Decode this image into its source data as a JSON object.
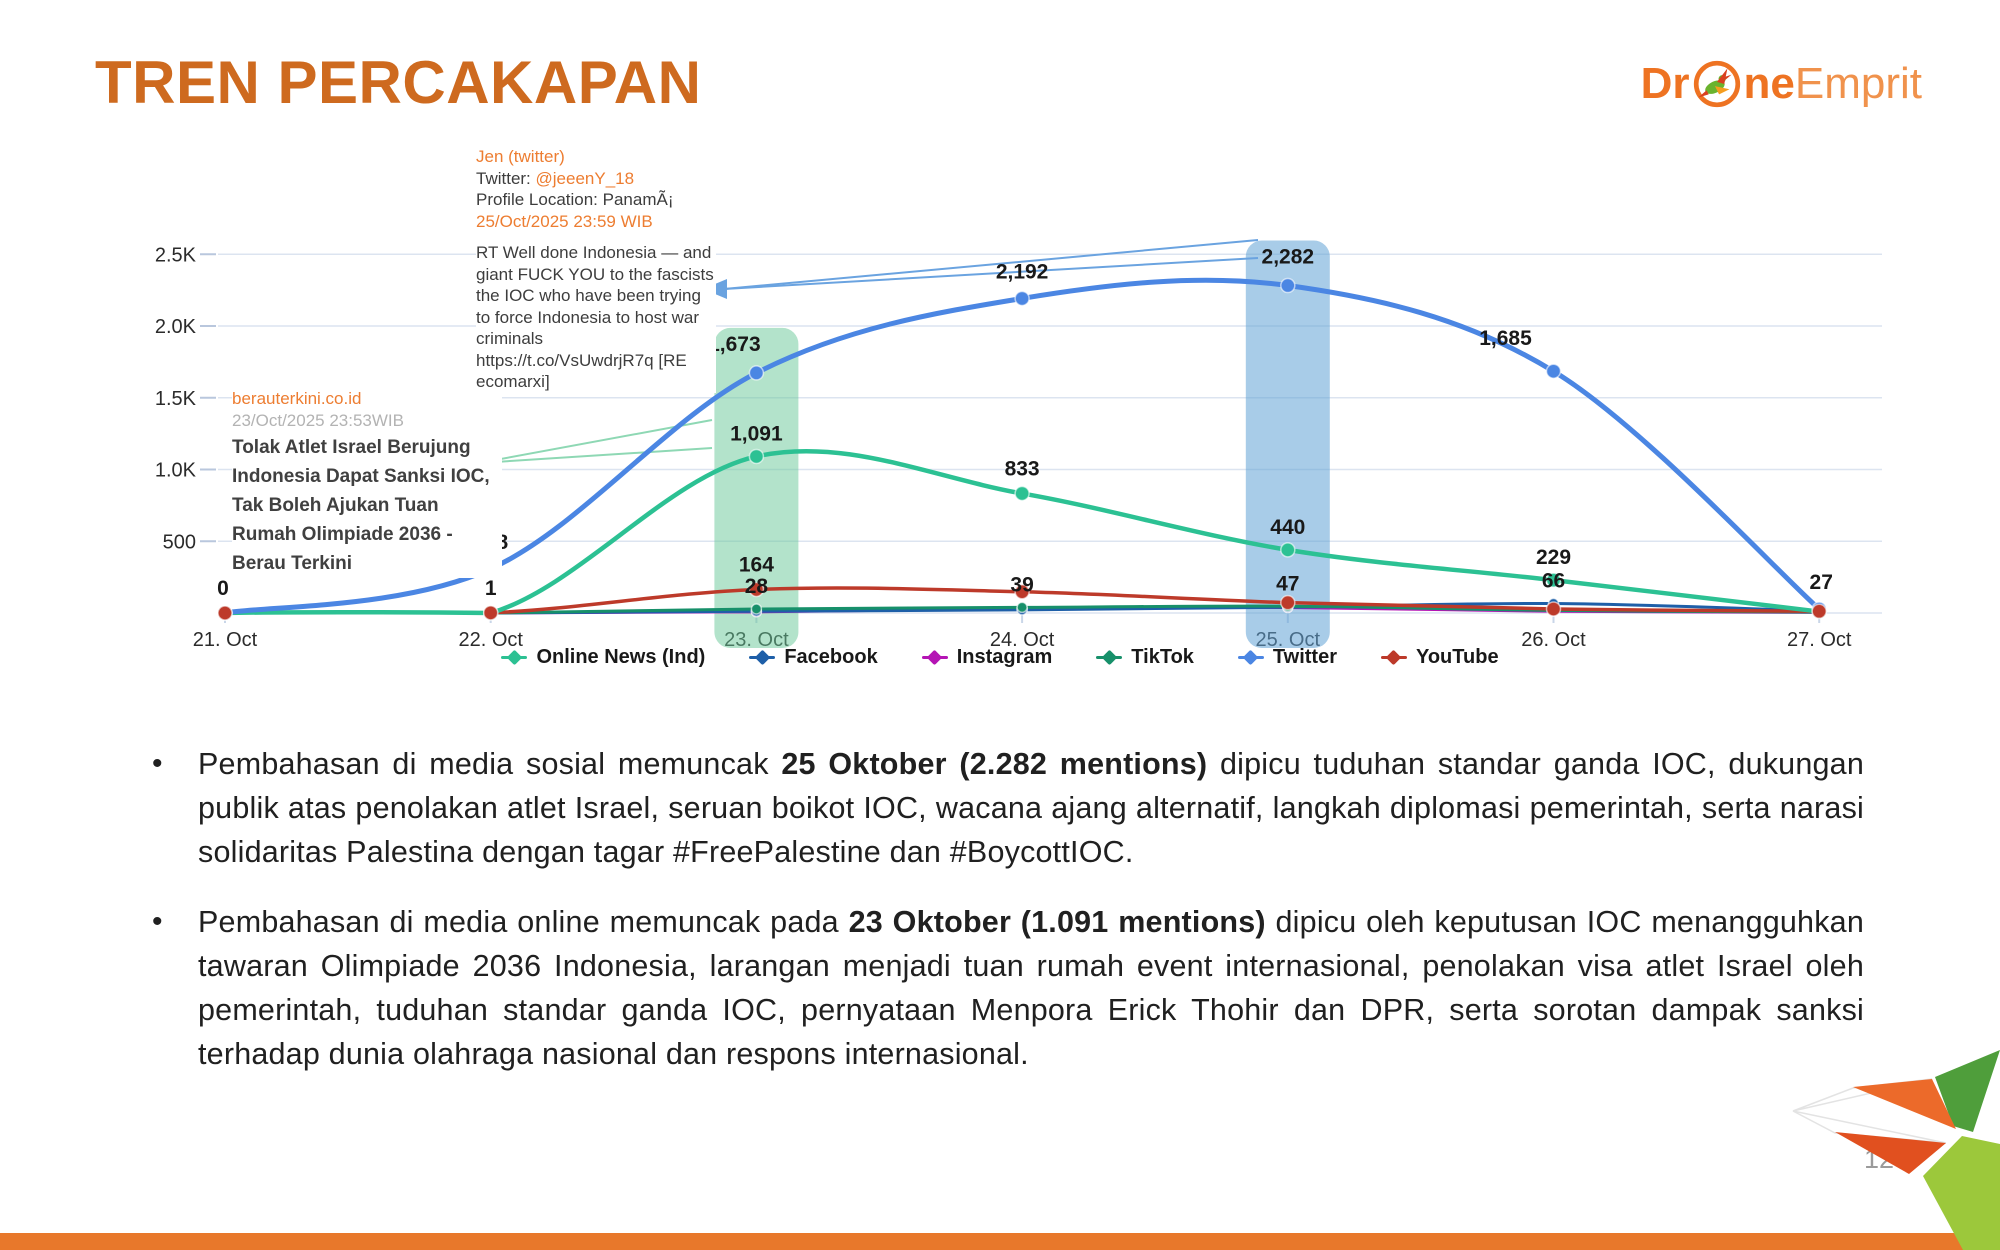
{
  "slide": {
    "title": "TREN PERCAKAPAN",
    "page_number": "12"
  },
  "logo": {
    "prefix": "Dr",
    "mid": "ne",
    "suffix": "Emprit"
  },
  "chart_data": {
    "type": "line",
    "categories": [
      "21. Oct",
      "22. Oct",
      "23. Oct",
      "24. Oct",
      "25. Oct",
      "26. Oct",
      "27. Oct"
    ],
    "ylim": [
      0,
      2700
    ],
    "grid": true,
    "legend_position": "bottom",
    "yticks": [
      {
        "v": 500,
        "label": "500"
      },
      {
        "v": 1000,
        "label": "1.0K"
      },
      {
        "v": 1500,
        "label": "1.5K"
      },
      {
        "v": 2000,
        "label": "2.0K"
      },
      {
        "v": 2500,
        "label": "2.5K"
      }
    ],
    "series": [
      {
        "name": "Online News (Ind)",
        "color": "#2CC193",
        "values": [
          0,
          0,
          1091,
          833,
          440,
          229,
          10
        ],
        "labels": {
          "2": "1,091",
          "3": "833",
          "4": "440",
          "5": "229"
        }
      },
      {
        "name": "Facebook",
        "color": "#1E5FA8",
        "values": [
          0,
          0,
          12,
          22,
          40,
          66,
          14
        ],
        "labels": {
          "5": "66"
        }
      },
      {
        "name": "Instagram",
        "color": "#B414B4",
        "values": [
          0,
          0,
          8,
          30,
          38,
          12,
          4
        ],
        "labels": {}
      },
      {
        "name": "TikTok",
        "color": "#17906A",
        "values": [
          0,
          0,
          28,
          39,
          47,
          18,
          6
        ],
        "labels": {
          "2": "28",
          "3": "39",
          "4": "47"
        }
      },
      {
        "name": "Twitter",
        "color": "#4B86E3",
        "values": [
          0,
          308,
          1673,
          2192,
          2282,
          1685,
          27
        ],
        "labels": {
          "0": "0",
          "1": "308",
          "2": "1,673",
          "3": "2,192",
          "4": "2,282",
          "5": "1,685",
          "6": "27"
        }
      },
      {
        "name": "YouTube",
        "color": "#BD3A2A",
        "values": [
          0,
          1,
          164,
          148,
          72,
          28,
          12
        ],
        "labels": {
          "1": "1",
          "2": "164"
        }
      }
    ],
    "highlights": [
      {
        "day_index": 2,
        "color": "rgba(104,199,151,0.5)"
      },
      {
        "day_index": 4,
        "color": "rgba(96,163,214,0.55)"
      }
    ],
    "annotations": [
      {
        "author": "Jen (twitter)",
        "handle_label": "Twitter: ",
        "handle": "@jeeenY_18",
        "location": "Profile Location: PanamÃ¡",
        "timestamp": "25/Oct/2025 23:59 WIB",
        "body": "RT Well done Indonesia — and giant FUCK YOU to the fascists the IOC who have been trying to force Indonesia to host war criminals https://t.co/VsUwdrjR7q [RE ecomarxi]"
      },
      {
        "source": "berauterkini.co.id",
        "timestamp": "23/Oct/2025 23:53WIB",
        "headline": "Tolak Atlet Israel Berujung Indonesia Dapat Sanksi IOC, Tak Boleh Ajukan Tuan Rumah Olimpiade 2036 - Berau Terkini"
      }
    ]
  },
  "bullets": [
    {
      "segments": [
        {
          "t": "Pembahasan di media sosial memuncak ",
          "b": false
        },
        {
          "t": "25 Oktober (2.282 mentions)",
          "b": true
        },
        {
          "t": " dipicu tuduhan standar ganda IOC, dukungan publik atas penolakan atlet Israel, seruan boikot IOC, wacana ajang alternatif, langkah diplomasi pemerintah, serta narasi solidaritas Palestina dengan tagar #FreePalestine dan #BoycottIOC.",
          "b": false
        }
      ]
    },
    {
      "segments": [
        {
          "t": "Pembahasan di media online memuncak pada ",
          "b": false
        },
        {
          "t": "23 Oktober (1.091 mentions)",
          "b": true
        },
        {
          "t": " dipicu oleh keputusan IOC menangguhkan tawaran Olimpiade 2036 Indonesia, larangan menjadi tuan rumah event internasional, penolakan visa atlet Israel oleh pemerintah, tuduhan standar ganda IOC, pernyataan Menpora Erick Thohir dan DPR, serta sorotan dampak sanksi terhadap dunia olahraga nasional dan respons internasional.",
          "b": false
        }
      ]
    }
  ],
  "colors": {
    "title": "#CE6A1F",
    "accent_orange": "#ED7D31",
    "footer_bar": "#E8782B",
    "grid_line": "#DCE4F0"
  }
}
